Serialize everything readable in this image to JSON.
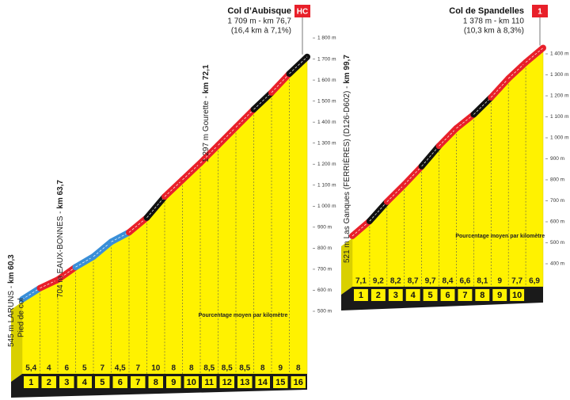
{
  "chart_data": [
    {
      "type": "profile",
      "title": "Col d’Aubisque",
      "category": "HC",
      "summit": "1 709 m - km 76,7",
      "summary": "(16,4 km à 7,1%)",
      "note": "Pourcentage moyen par kilomètre",
      "base_elevation": 545,
      "waypoints": [
        {
          "text": "545 m LARUNS - ",
          "km": "km 60,3",
          "sub": "Pied de col"
        },
        {
          "text": "704 m EAUX-BONNES - ",
          "km": "km 63,7"
        },
        {
          "text": "1 297 m Gourette - ",
          "km": "km 72,1"
        }
      ],
      "categories": [
        "1",
        "2",
        "3",
        "4",
        "5",
        "6",
        "7",
        "8",
        "9",
        "10",
        "11",
        "12",
        "13",
        "14",
        "15",
        "16"
      ],
      "values": [
        5.4,
        4,
        6,
        5,
        7,
        4.5,
        7,
        10,
        8,
        8,
        8.5,
        8.5,
        8.5,
        8,
        9,
        8
      ],
      "value_labels": [
        "5,4",
        "4",
        "6",
        "5",
        "7",
        "4,5",
        "7",
        "10",
        "8",
        "8",
        "8,5",
        "8,5",
        "8,5",
        "8",
        "9",
        "8"
      ],
      "segment_colors": [
        "#3a8fd8",
        "#e8202a",
        "#e8202a",
        "#3a8fd8",
        "#3a8fd8",
        "#3a8fd8",
        "#e8202a",
        "#111111",
        "#e8202a",
        "#e8202a",
        "#e8202a",
        "#e8202a",
        "#e8202a",
        "#111111",
        "#e8202a",
        "#111111"
      ],
      "ylim": [
        500,
        1800
      ],
      "yticks": [
        {
          "value": 500,
          "label": "500 m"
        },
        {
          "value": 600,
          "label": "600 m"
        },
        {
          "value": 700,
          "label": "700 m"
        },
        {
          "value": 800,
          "label": "800 m"
        },
        {
          "value": 900,
          "label": "900 m"
        },
        {
          "value": 1000,
          "label": "1 000 m"
        },
        {
          "value": 1100,
          "label": "1 100 m"
        },
        {
          "value": 1200,
          "label": "1 200 m"
        },
        {
          "value": 1300,
          "label": "1 300 m"
        },
        {
          "value": 1400,
          "label": "1 400 m"
        },
        {
          "value": 1500,
          "label": "1 500 m"
        },
        {
          "value": 1600,
          "label": "1 600 m"
        },
        {
          "value": 1700,
          "label": "1 700 m"
        },
        {
          "value": 1800,
          "label": "1 800 m"
        }
      ]
    },
    {
      "type": "profile",
      "title": "Col de Spandelles",
      "category": "1",
      "summit": "1 378 m - km 110",
      "summary": "(10,3 km à 8,3%)",
      "note": "Pourcentage moyen par kilomètre",
      "base_elevation": 521,
      "waypoints": [
        {
          "text": "521 m Las Ganques (FERRIÈRES) (D126-D602) - ",
          "km": "km 99,7"
        }
      ],
      "categories": [
        "1",
        "2",
        "3",
        "4",
        "5",
        "6",
        "7",
        "8",
        "9",
        "10",
        null
      ],
      "values": [
        7.1,
        9.2,
        8.2,
        8.7,
        9.7,
        8.4,
        6.6,
        8.1,
        9,
        7.7,
        6.9
      ],
      "value_labels": [
        "7,1",
        "9,2",
        "8,2",
        "8,7",
        "9,7",
        "8,4",
        "6,6",
        "8,1",
        "9",
        "7,7",
        "6,9"
      ],
      "segment_colors": [
        "#e8202a",
        "#111111",
        "#e8202a",
        "#e8202a",
        "#111111",
        "#e8202a",
        "#e8202a",
        "#111111",
        "#e8202a",
        "#e8202a",
        "#e8202a"
      ],
      "ylim": [
        400,
        1400
      ],
      "yticks": [
        {
          "value": 400,
          "label": "400 m"
        },
        {
          "value": 500,
          "label": "500 m"
        },
        {
          "value": 600,
          "label": "600 m"
        },
        {
          "value": 700,
          "label": "700 m"
        },
        {
          "value": 800,
          "label": "800 m"
        },
        {
          "value": 900,
          "label": "900 m"
        },
        {
          "value": 1000,
          "label": "1 000 m"
        },
        {
          "value": 1100,
          "label": "1 100 m"
        },
        {
          "value": 1200,
          "label": "1 200 m"
        },
        {
          "value": 1300,
          "label": "1 300 m"
        },
        {
          "value": 1400,
          "label": "1 400 m"
        }
      ]
    }
  ]
}
